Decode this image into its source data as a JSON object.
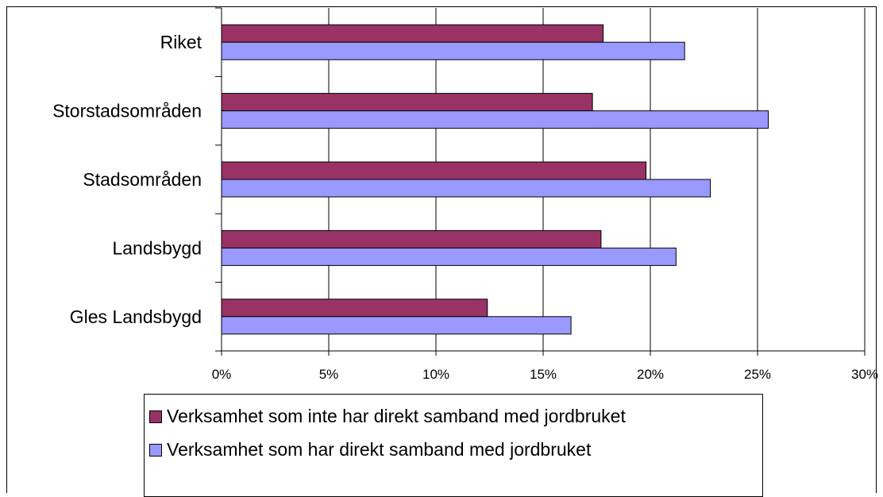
{
  "chart_data": {
    "type": "bar",
    "orientation": "horizontal",
    "categories": [
      "Riket",
      "Storstadsområden",
      "Stadsområden",
      "Landsbygd",
      "Gles Landsbygd"
    ],
    "series": [
      {
        "name": "Verksamhet som inte har direkt samband med jordbruket",
        "values": [
          17.8,
          17.3,
          19.8,
          17.7,
          12.4
        ],
        "color": "#993366"
      },
      {
        "name": "Verksamhet som har direkt samband med jordbruket",
        "values": [
          21.6,
          25.5,
          22.8,
          21.2,
          16.3
        ],
        "color": "#9999ff"
      }
    ],
    "x_ticks": [
      "0%",
      "5%",
      "10%",
      "15%",
      "20%",
      "25%",
      "30%"
    ],
    "xlim": [
      0,
      30
    ],
    "grid": true,
    "legend_position": "bottom"
  }
}
